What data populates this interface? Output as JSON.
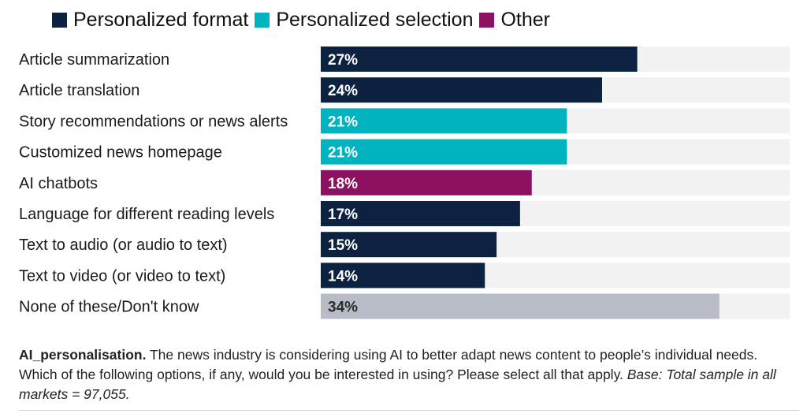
{
  "legend": [
    {
      "label": "Personalized format",
      "color": "#0d2240"
    },
    {
      "label": "Personalized selection",
      "color": "#00b3be"
    },
    {
      "label": "Other",
      "color": "#8d1160"
    }
  ],
  "chart_data": {
    "type": "bar",
    "orientation": "horizontal",
    "categories": [
      "Article summarization",
      "Article translation",
      "Story recommendations or news alerts",
      "Customized news homepage",
      "AI chatbots",
      "Language for different reading levels",
      "Text to audio (or audio to text)",
      "Text to video (or video to text)",
      "None of these/Don't know"
    ],
    "values": [
      27,
      24,
      21,
      21,
      18,
      17,
      15,
      14,
      34
    ],
    "value_labels": [
      "27%",
      "24%",
      "21%",
      "21%",
      "18%",
      "17%",
      "15%",
      "14%",
      "34%"
    ],
    "groups": [
      "Personalized format",
      "Personalized format",
      "Personalized selection",
      "Personalized selection",
      "Other",
      "Personalized format",
      "Personalized format",
      "Personalized format",
      "None"
    ],
    "bar_colors": [
      "#0d2240",
      "#0d2240",
      "#00b3be",
      "#00b3be",
      "#8d1160",
      "#0d2240",
      "#0d2240",
      "#0d2240",
      "#b7bcc6"
    ],
    "value_label_colors": [
      "#ffffff",
      "#ffffff",
      "#ffffff",
      "#ffffff",
      "#ffffff",
      "#ffffff",
      "#ffffff",
      "#ffffff",
      "#2b2b2b"
    ],
    "track_color": "#f2f2f2",
    "xlim": [
      0,
      40
    ],
    "grid": false,
    "legend_position": "top-left"
  },
  "footnote": {
    "bold": "AI_personalisation.",
    "text": " The news industry is considering using AI to better adapt news content to people’s individual needs. Which of the following options, if any, would you be interested in using? Please select all that apply. ",
    "italic": "Base: Total sample in all markets = 97,055."
  }
}
